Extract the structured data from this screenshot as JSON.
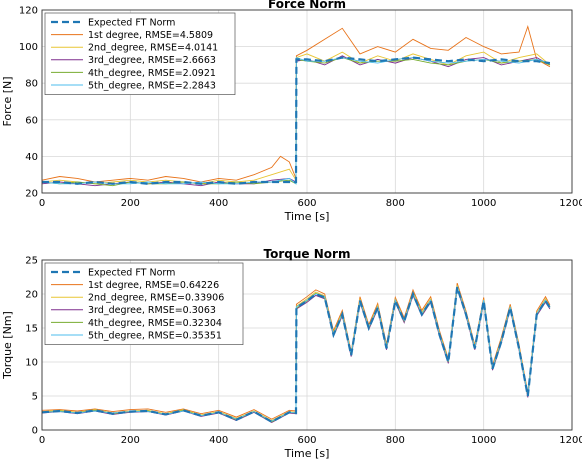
{
  "chart_data": [
    {
      "type": "line",
      "title": "Force Norm",
      "xlabel": "Time [s]",
      "ylabel": "Force [N]",
      "xlim": [
        0,
        1200
      ],
      "ylim": [
        20,
        120
      ],
      "xticks": [
        0,
        200,
        400,
        600,
        800,
        1000,
        1200
      ],
      "yticks": [
        20,
        40,
        60,
        80,
        100,
        120
      ],
      "grid": true,
      "legend_position": "top-left",
      "series": [
        {
          "name": "Expected FT Norm",
          "color": "#1f77b4",
          "dashed": true,
          "x": [
            0,
            40,
            80,
            120,
            160,
            200,
            240,
            280,
            320,
            360,
            400,
            440,
            480,
            520,
            560,
            575,
            576,
            600,
            640,
            680,
            720,
            760,
            800,
            840,
            880,
            920,
            960,
            1000,
            1040,
            1080,
            1120,
            1150
          ],
          "y": [
            26,
            26,
            25,
            26,
            25,
            26,
            25,
            26,
            26,
            25,
            26,
            25,
            26,
            26,
            26,
            26,
            93,
            93,
            92,
            94,
            93,
            92,
            93,
            94,
            93,
            92,
            93,
            92,
            93,
            92,
            92,
            91
          ]
        },
        {
          "name": "1st degree, RMSE=4.5809",
          "color": "#e8731a",
          "dashed": false,
          "x": [
            0,
            40,
            80,
            120,
            160,
            200,
            240,
            280,
            320,
            360,
            400,
            440,
            480,
            520,
            540,
            560,
            575,
            576,
            600,
            640,
            680,
            720,
            760,
            800,
            840,
            880,
            920,
            960,
            1000,
            1040,
            1080,
            1100,
            1120,
            1150
          ],
          "y": [
            27,
            29,
            28,
            26,
            27,
            28,
            27,
            29,
            28,
            26,
            28,
            27,
            30,
            34,
            40,
            37,
            28,
            95,
            98,
            104,
            110,
            96,
            100,
            97,
            104,
            99,
            98,
            105,
            100,
            96,
            97,
            111,
            93,
            89
          ]
        },
        {
          "name": "2nd_degree, RMSE=4.0141",
          "color": "#e8c534",
          "dashed": false,
          "x": [
            0,
            40,
            80,
            120,
            160,
            200,
            240,
            280,
            320,
            360,
            400,
            440,
            480,
            520,
            560,
            575,
            576,
            600,
            640,
            680,
            720,
            760,
            800,
            840,
            880,
            920,
            960,
            1000,
            1040,
            1080,
            1120,
            1150
          ],
          "y": [
            26,
            27,
            26,
            25,
            26,
            27,
            26,
            27,
            26,
            25,
            27,
            26,
            27,
            30,
            33,
            27,
            94,
            96,
            92,
            97,
            91,
            95,
            92,
            96,
            93,
            90,
            95,
            97,
            91,
            94,
            96,
            90
          ]
        },
        {
          "name": "3rd_degree, RMSE=2.6663",
          "color": "#7e2f8e",
          "dashed": false,
          "x": [
            0,
            40,
            80,
            120,
            160,
            200,
            240,
            280,
            320,
            360,
            400,
            440,
            480,
            520,
            560,
            575,
            576,
            600,
            640,
            680,
            720,
            760,
            800,
            840,
            880,
            920,
            960,
            1000,
            1040,
            1080,
            1120,
            1150
          ],
          "y": [
            25,
            26,
            25,
            24,
            25,
            26,
            25,
            26,
            25,
            24,
            26,
            25,
            25,
            27,
            28,
            26,
            92,
            93,
            90,
            95,
            90,
            93,
            91,
            94,
            92,
            89,
            93,
            94,
            90,
            92,
            94,
            90
          ]
        },
        {
          "name": "4th_degree, RMSE=2.0921",
          "color": "#77ac30",
          "dashed": false,
          "x": [
            0,
            40,
            80,
            120,
            160,
            200,
            240,
            280,
            320,
            360,
            400,
            440,
            480,
            520,
            560,
            575,
            576,
            600,
            640,
            680,
            720,
            760,
            800,
            840,
            880,
            920,
            960,
            1000,
            1040,
            1080,
            1120,
            1150
          ],
          "y": [
            26,
            25,
            26,
            25,
            24,
            26,
            25,
            25,
            26,
            25,
            25,
            26,
            25,
            26,
            27,
            25,
            93,
            92,
            91,
            94,
            91,
            92,
            92,
            93,
            91,
            90,
            92,
            93,
            91,
            92,
            93,
            90
          ]
        },
        {
          "name": "5th_degree, RMSE=2.2843",
          "color": "#4dbeee",
          "dashed": false,
          "x": [
            0,
            40,
            80,
            120,
            160,
            200,
            240,
            280,
            320,
            360,
            400,
            440,
            480,
            520,
            560,
            575,
            576,
            600,
            640,
            680,
            720,
            760,
            800,
            840,
            880,
            920,
            960,
            1000,
            1040,
            1080,
            1120,
            1150
          ],
          "y": [
            26,
            25,
            25,
            26,
            25,
            25,
            26,
            25,
            25,
            26,
            25,
            25,
            26,
            26,
            28,
            25,
            94,
            92,
            92,
            94,
            92,
            91,
            93,
            94,
            92,
            91,
            92,
            93,
            92,
            91,
            93,
            91
          ]
        }
      ]
    },
    {
      "type": "line",
      "title": "Torque Norm",
      "xlabel": "Time [s]",
      "ylabel": "Torque [Nm]",
      "xlim": [
        0,
        1200
      ],
      "ylim": [
        0,
        25
      ],
      "xticks": [
        0,
        200,
        400,
        600,
        800,
        1000,
        1200
      ],
      "yticks": [
        0,
        5,
        10,
        15,
        20,
        25
      ],
      "grid": true,
      "legend_position": "top-left",
      "series": [
        {
          "name": "Expected FT Norm",
          "color": "#1f77b4",
          "dashed": true,
          "x": [
            0,
            40,
            80,
            120,
            160,
            200,
            240,
            280,
            320,
            360,
            400,
            440,
            480,
            520,
            560,
            575,
            576,
            600,
            620,
            640,
            660,
            680,
            700,
            720,
            740,
            760,
            780,
            800,
            820,
            840,
            860,
            880,
            900,
            920,
            940,
            960,
            980,
            1000,
            1020,
            1040,
            1060,
            1080,
            1100,
            1120,
            1140,
            1150
          ],
          "y": [
            2.6,
            2.8,
            2.5,
            2.9,
            2.4,
            2.7,
            2.8,
            2.3,
            2.9,
            2.1,
            2.6,
            1.5,
            2.7,
            1.2,
            2.6,
            2.5,
            18,
            19,
            20,
            19.5,
            14,
            17,
            11,
            19,
            15,
            18,
            12,
            19,
            16,
            20,
            17,
            19,
            14,
            10,
            21,
            17,
            12,
            19,
            9,
            13,
            18,
            12,
            5,
            17,
            19,
            18
          ]
        },
        {
          "name": "1st degree, RMSE=0.64226",
          "color": "#e8731a",
          "dashed": false,
          "x": [
            0,
            40,
            80,
            120,
            160,
            200,
            240,
            280,
            320,
            360,
            400,
            440,
            480,
            520,
            560,
            575,
            576,
            600,
            620,
            640,
            660,
            680,
            700,
            720,
            740,
            760,
            780,
            800,
            820,
            840,
            860,
            880,
            900,
            920,
            940,
            960,
            980,
            1000,
            1020,
            1040,
            1060,
            1080,
            1100,
            1120,
            1140,
            1150
          ],
          "y": [
            2.9,
            3.0,
            2.8,
            3.1,
            2.7,
            3.0,
            3.1,
            2.6,
            3.1,
            2.4,
            2.9,
            1.9,
            3.0,
            1.6,
            2.9,
            2.8,
            18.5,
            19.6,
            20.6,
            20,
            14.6,
            17.6,
            11.5,
            19.6,
            15.5,
            18.6,
            12.6,
            19.5,
            16.5,
            20.6,
            17.6,
            19.6,
            14.6,
            10.5,
            21.6,
            17.5,
            12.5,
            19.5,
            9.5,
            13.6,
            18.5,
            12.6,
            5.5,
            17.5,
            19.6,
            18.4
          ]
        },
        {
          "name": "2nd_degree, RMSE=0.33906",
          "color": "#e8c534",
          "dashed": false,
          "x": [
            0,
            40,
            80,
            120,
            160,
            200,
            240,
            280,
            320,
            360,
            400,
            440,
            480,
            520,
            560,
            575,
            576,
            600,
            620,
            640,
            660,
            680,
            700,
            720,
            740,
            760,
            780,
            800,
            820,
            840,
            860,
            880,
            900,
            920,
            940,
            960,
            980,
            1000,
            1020,
            1040,
            1060,
            1080,
            1100,
            1120,
            1140,
            1150
          ],
          "y": [
            2.7,
            2.9,
            2.6,
            3.0,
            2.5,
            2.8,
            2.9,
            2.4,
            3.0,
            2.2,
            2.7,
            1.7,
            2.8,
            1.4,
            2.7,
            2.6,
            18.2,
            19.3,
            20.3,
            19.7,
            14.3,
            17.3,
            11.3,
            19.3,
            15.2,
            18.3,
            12.3,
            19.2,
            16.2,
            20.3,
            17.3,
            19.3,
            14.3,
            10.3,
            21.3,
            17.2,
            12.2,
            19.2,
            9.2,
            13.3,
            18.2,
            12.3,
            5.2,
            17.2,
            19.3,
            18.1
          ]
        },
        {
          "name": "3rd_degree, RMSE=0.3063",
          "color": "#7e2f8e",
          "dashed": false,
          "x": [
            0,
            40,
            80,
            120,
            160,
            200,
            240,
            280,
            320,
            360,
            400,
            440,
            480,
            520,
            560,
            575,
            576,
            600,
            620,
            640,
            660,
            680,
            700,
            720,
            740,
            760,
            780,
            800,
            820,
            840,
            860,
            880,
            900,
            920,
            940,
            960,
            980,
            1000,
            1020,
            1040,
            1060,
            1080,
            1100,
            1120,
            1140,
            1150
          ],
          "y": [
            2.5,
            2.7,
            2.4,
            2.8,
            2.3,
            2.6,
            2.7,
            2.2,
            2.8,
            2.0,
            2.5,
            1.4,
            2.6,
            1.1,
            2.5,
            2.4,
            17.8,
            18.8,
            19.8,
            19.3,
            13.8,
            16.8,
            10.8,
            18.8,
            14.8,
            17.8,
            11.8,
            18.8,
            15.8,
            19.8,
            16.8,
            18.8,
            13.8,
            9.8,
            20.8,
            16.8,
            11.8,
            18.8,
            8.8,
            12.8,
            17.8,
            11.8,
            4.8,
            16.8,
            18.8,
            17.8
          ]
        },
        {
          "name": "4th_degree, RMSE=0.32304",
          "color": "#77ac30",
          "dashed": false,
          "x": [
            0,
            40,
            80,
            120,
            160,
            200,
            240,
            280,
            320,
            360,
            400,
            440,
            480,
            520,
            560,
            575,
            576,
            600,
            620,
            640,
            660,
            680,
            700,
            720,
            740,
            760,
            780,
            800,
            820,
            840,
            860,
            880,
            900,
            920,
            940,
            960,
            980,
            1000,
            1020,
            1040,
            1060,
            1080,
            1100,
            1120,
            1140,
            1150
          ],
          "y": [
            2.6,
            2.8,
            2.5,
            2.9,
            2.4,
            2.7,
            2.8,
            2.3,
            2.9,
            2.1,
            2.6,
            1.5,
            2.7,
            1.2,
            2.6,
            2.5,
            17.9,
            19.0,
            20.1,
            19.4,
            14.0,
            17.0,
            11.0,
            19.0,
            15.0,
            18.0,
            12.0,
            19.0,
            16.0,
            20.0,
            17.0,
            19.0,
            14.0,
            10.0,
            21.0,
            17.0,
            12.0,
            19.0,
            9.0,
            13.0,
            18.0,
            12.0,
            5.0,
            17.0,
            19.0,
            18.0
          ]
        },
        {
          "name": "5th_degree, RMSE=0.35351",
          "color": "#4dbeee",
          "dashed": false,
          "x": [
            0,
            40,
            80,
            120,
            160,
            200,
            240,
            280,
            320,
            360,
            400,
            440,
            480,
            520,
            560,
            575,
            576,
            600,
            620,
            640,
            660,
            680,
            700,
            720,
            740,
            760,
            780,
            800,
            820,
            840,
            860,
            880,
            900,
            920,
            940,
            960,
            980,
            1000,
            1020,
            1040,
            1060,
            1080,
            1100,
            1120,
            1140,
            1150
          ],
          "y": [
            2.6,
            2.7,
            2.5,
            2.8,
            2.5,
            2.7,
            2.7,
            2.3,
            2.8,
            2.1,
            2.6,
            1.6,
            2.7,
            1.3,
            2.6,
            2.5,
            18.1,
            19.1,
            20.0,
            19.6,
            14.1,
            17.1,
            11.1,
            19.1,
            15.1,
            18.1,
            12.1,
            19.1,
            16.1,
            20.1,
            17.1,
            19.1,
            14.1,
            10.1,
            21.1,
            17.1,
            12.1,
            19.1,
            9.1,
            13.1,
            18.1,
            12.1,
            5.1,
            17.1,
            19.1,
            18.0
          ]
        }
      ]
    }
  ]
}
